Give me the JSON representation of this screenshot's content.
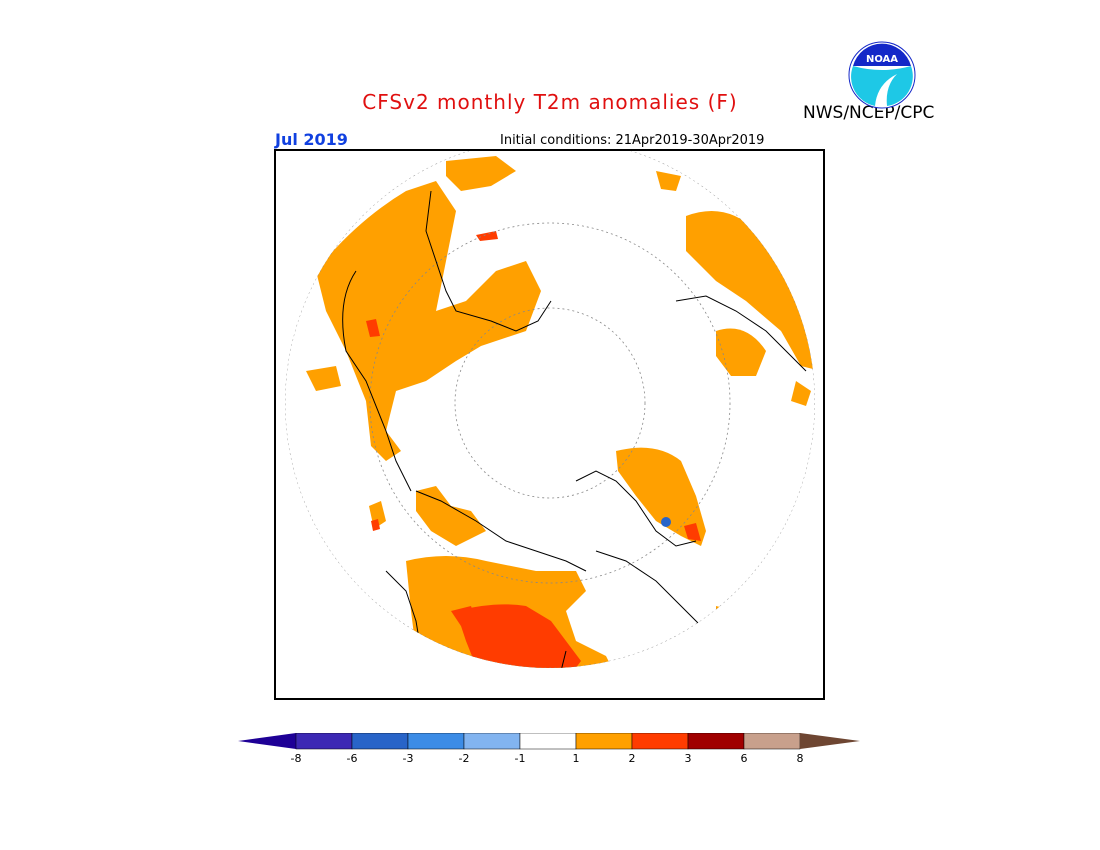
{
  "header": {
    "title": "CFSv2 monthly T2m anomalies (F)",
    "month": "Jul 2019",
    "initial_conditions": "Initial conditions: 21Apr2019-30Apr2019",
    "org": "NWS/NCEP/CPC",
    "logo_text": "NOAA"
  },
  "colors": {
    "bin_neg8_neg6": "#3c28b4",
    "bin_neg6_neg3": "#2864c8",
    "bin_neg3_neg2": "#3c8ce6",
    "bin_neg2_neg1": "#82b4f0",
    "bin_neg1_1": "#ffffff",
    "bin_1_2": "#ffa000",
    "bin_2_3": "#ff3c00",
    "bin_3_6": "#a00000",
    "bin_6_8": "#c8a08c",
    "below_neg8": "#1e0096",
    "above_8": "#6e4632"
  },
  "colorbar": {
    "ticks": [
      "-8",
      "-6",
      "-3",
      "-2",
      "-1",
      "1",
      "2",
      "3",
      "6",
      "8"
    ],
    "units": "F"
  },
  "map": {
    "projection": "north polar stereographic",
    "variable": "T2m anomaly",
    "dominant_anomaly_bins": [
      "-1 to 1",
      "1 to 2",
      "2 to 3"
    ]
  }
}
